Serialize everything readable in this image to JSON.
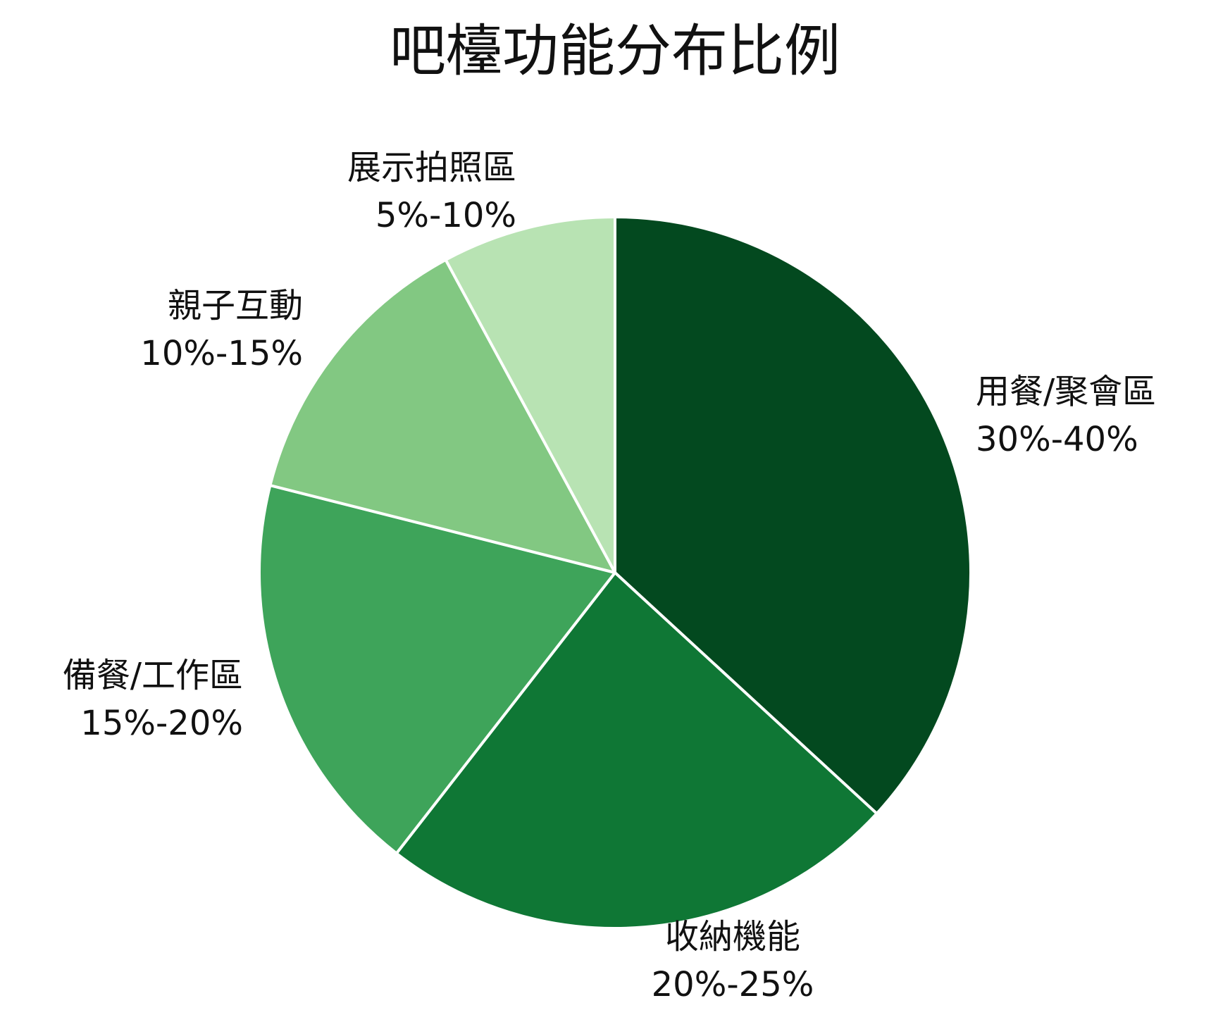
{
  "chart_data": {
    "type": "pie",
    "title": "吧檯功能分布比例",
    "start_angle_deg": 90,
    "direction": "clockwise",
    "slice_border_color": "#ffffff",
    "slices": [
      {
        "name": "用餐/聚會區",
        "range_label": "30%-40%",
        "value": 35,
        "color": "#03491F"
      },
      {
        "name": "收納機能",
        "range_label": "20%-25%",
        "value": 22.5,
        "color": "#0F7735"
      },
      {
        "name": "備餐/工作區",
        "range_label": "15%-20%",
        "value": 17.5,
        "color": "#3EA45A"
      },
      {
        "name": "親子互動",
        "range_label": "10%-15%",
        "value": 12.5,
        "color": "#82C882"
      },
      {
        "name": "展示拍照區",
        "range_label": "5%-10%",
        "value": 7.5,
        "color": "#B8E3B3"
      }
    ]
  }
}
